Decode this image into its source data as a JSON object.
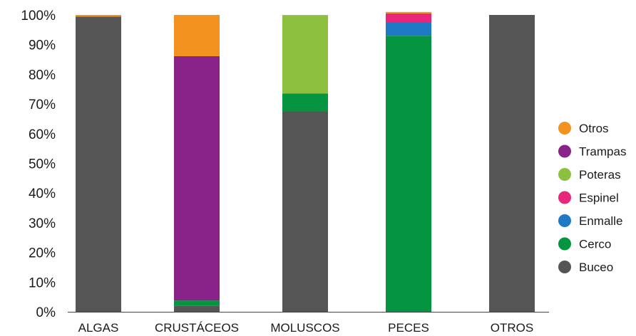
{
  "chart_data": {
    "type": "bar",
    "stacked": true,
    "categories": [
      "ALGAS",
      "CRUSTÁCEOS",
      "MOLUSCOS",
      "PECES",
      "OTROS"
    ],
    "series": [
      {
        "name": "Buceo",
        "color": "#555555",
        "values": [
          99.4,
          2.0,
          67.5,
          0.0,
          100.0
        ]
      },
      {
        "name": "Cerco",
        "color": "#05943f",
        "values": [
          0.0,
          1.8,
          6.0,
          93.0,
          0.0
        ]
      },
      {
        "name": "Enmalle",
        "color": "#1f79c4",
        "values": [
          0.0,
          0.0,
          0.0,
          4.6,
          0.0
        ]
      },
      {
        "name": "Espinel",
        "color": "#e8267c",
        "values": [
          0.0,
          0.0,
          0.0,
          2.9,
          0.0
        ]
      },
      {
        "name": "Poteras",
        "color": "#8dc03e",
        "values": [
          0.0,
          0.0,
          26.3,
          0.0,
          0.0
        ]
      },
      {
        "name": "Trampas",
        "color": "#8a2389",
        "values": [
          0.0,
          82.3,
          0.0,
          0.0,
          0.0
        ]
      },
      {
        "name": "Otros",
        "color": "#f3921e",
        "values": [
          0.6,
          13.9,
          0.2,
          0.5,
          0.0
        ]
      }
    ],
    "yticks": [
      "0%",
      "10%",
      "20%",
      "30%",
      "40%",
      "50%",
      "60%",
      "70%",
      "80%",
      "90%",
      "100%"
    ],
    "ylim": [
      0,
      100
    ],
    "legend_position": "right",
    "legend_order": [
      "Otros",
      "Trampas",
      "Poteras",
      "Espinel",
      "Enmalle",
      "Cerco",
      "Buceo"
    ],
    "grid": false
  }
}
